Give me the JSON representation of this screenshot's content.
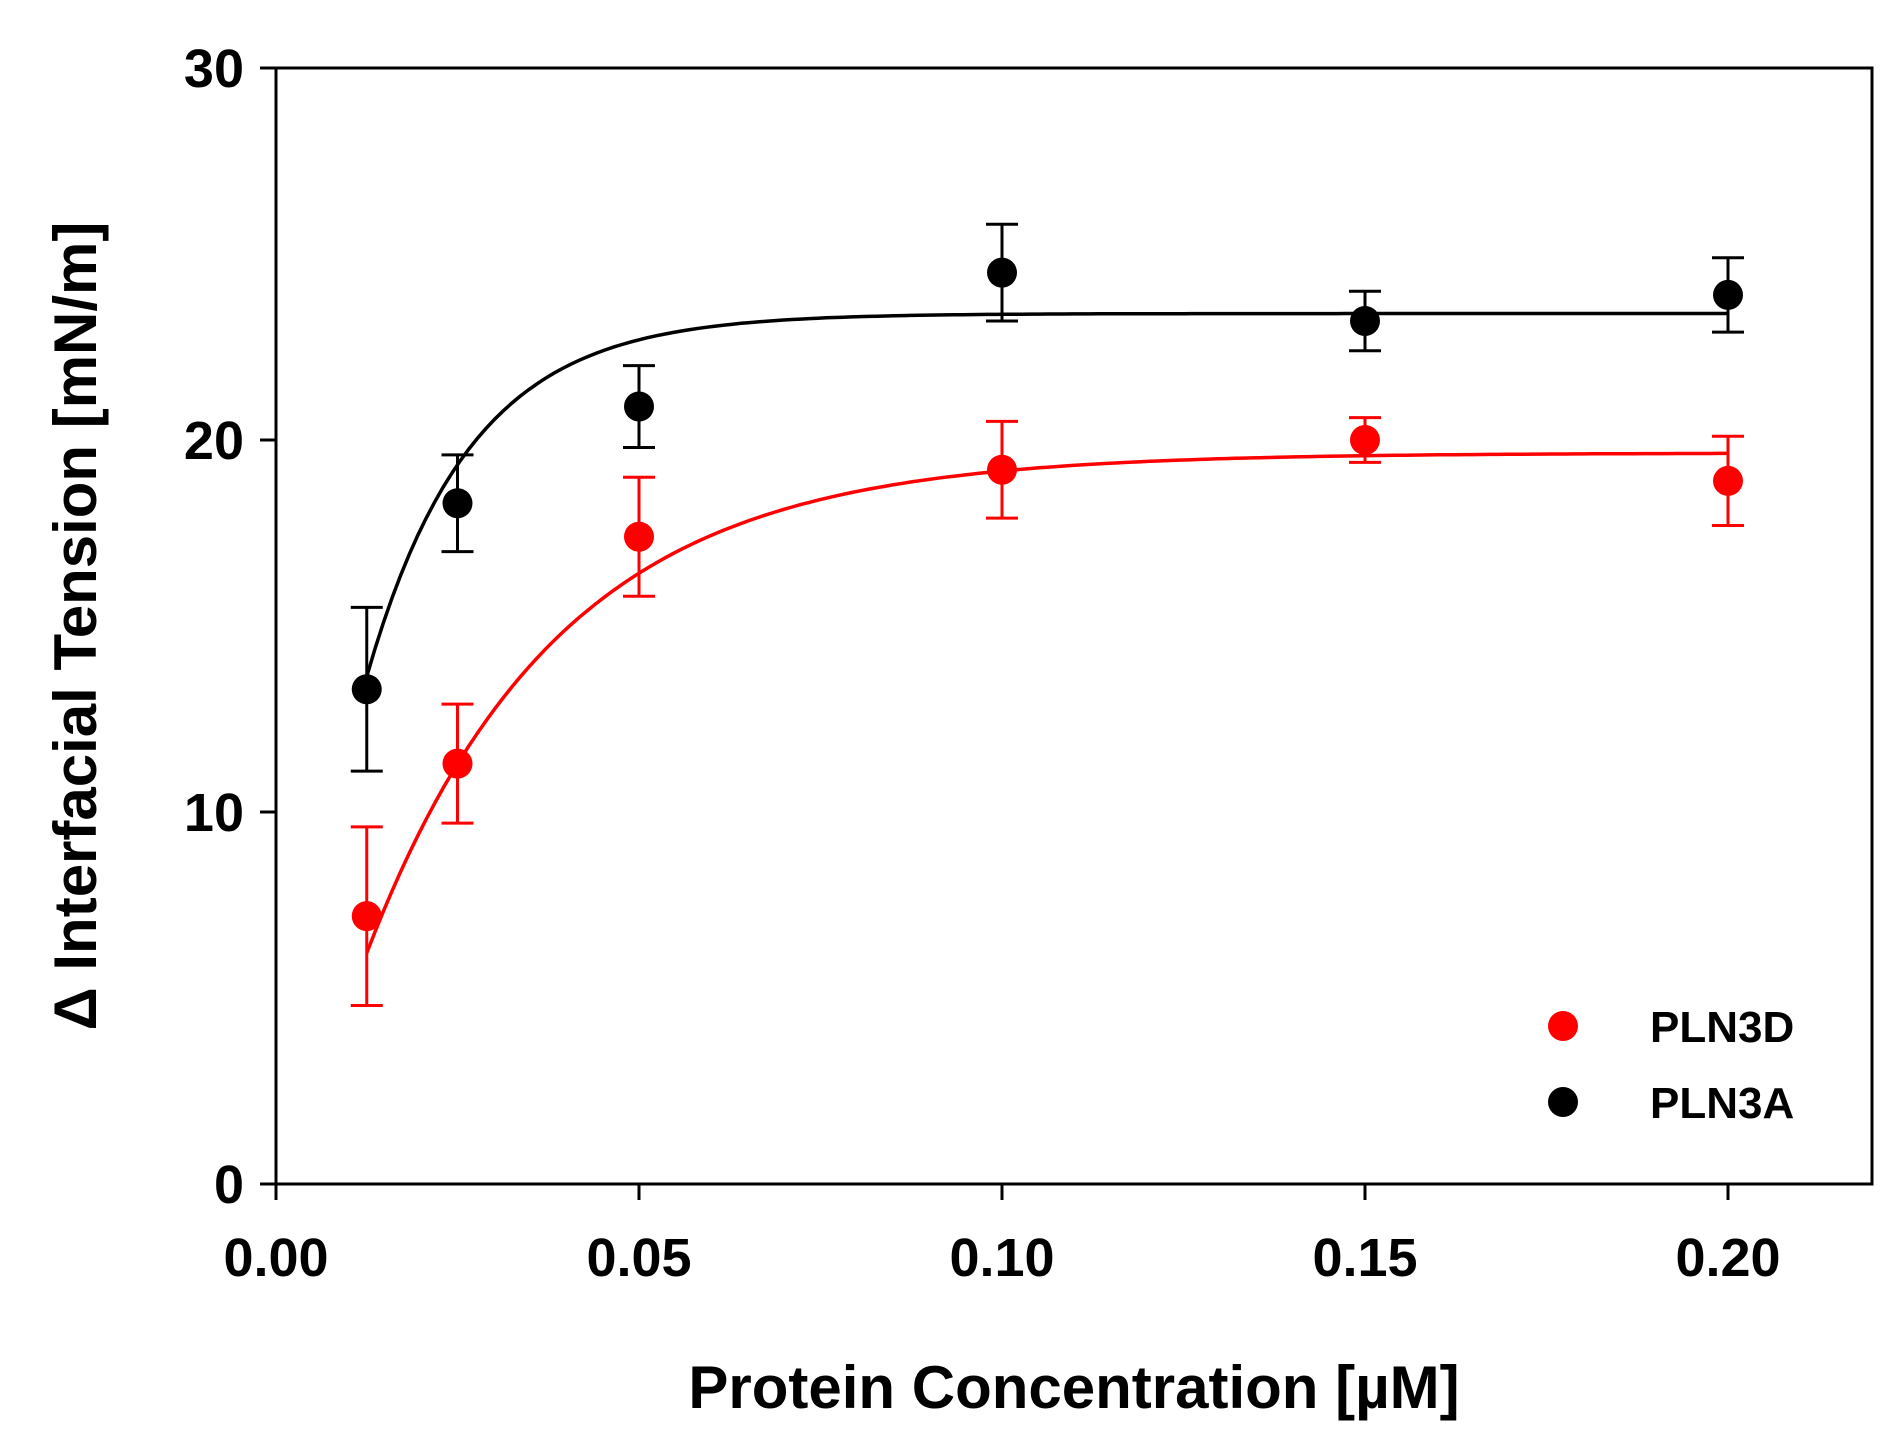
{
  "chart_data": {
    "type": "scatter",
    "title": "",
    "xlabel": "Protein Concentration [µM]",
    "ylabel": "Δ Interfacial Tension [mN/m]",
    "xlim": [
      0,
      0.22
    ],
    "ylim": [
      0,
      30
    ],
    "xticks": [
      0.0,
      0.05,
      0.1,
      0.15,
      0.2
    ],
    "xtick_labels": [
      "0.00",
      "0.05",
      "0.10",
      "0.15",
      "0.20"
    ],
    "yticks": [
      0,
      10,
      20,
      30
    ],
    "ytick_labels": [
      "0",
      "10",
      "20",
      "30"
    ],
    "grid": false,
    "legend_position": "bottom-right",
    "series": [
      {
        "name": "PLN3D",
        "color": "#ff0000",
        "x": [
          0.0125,
          0.025,
          0.05,
          0.1,
          0.15,
          0.2
        ],
        "y": [
          7.2,
          11.3,
          17.4,
          19.2,
          20.0,
          18.9
        ],
        "err": [
          2.4,
          1.6,
          1.6,
          1.3,
          0.6,
          1.2
        ],
        "fit": {
          "model": "exponential_rise",
          "ymax": 19.65,
          "k": 38,
          "x0": 0.0025
        }
      },
      {
        "name": "PLN3A",
        "color": "#000000",
        "x": [
          0.0125,
          0.025,
          0.05,
          0.1,
          0.15,
          0.2
        ],
        "y": [
          13.3,
          18.3,
          20.9,
          24.5,
          23.2,
          23.9
        ],
        "err": [
          2.2,
          1.3,
          1.1,
          1.3,
          0.8,
          1.0
        ],
        "fit": {
          "model": "exponential_rise",
          "ymax": 23.4,
          "k": 70,
          "x0": 0.0
        }
      }
    ]
  }
}
